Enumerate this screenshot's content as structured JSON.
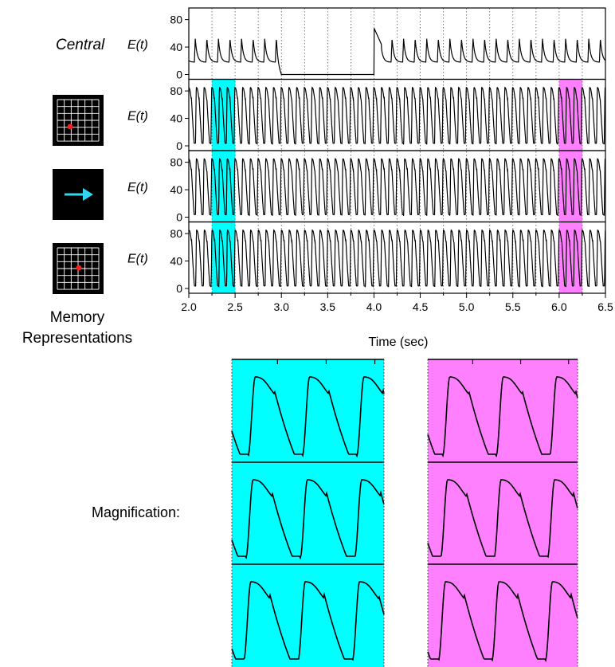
{
  "figure": {
    "central_label": "Central",
    "memory_label_line1": "Memory",
    "memory_label_line2": "Representations",
    "magnification_label": "Magnification:"
  },
  "colors": {
    "highlight_left": "#00ffff",
    "highlight_right": "#ff80ff",
    "trace": "#000000",
    "icon_background": "#000000",
    "icon_grid": "#ffffff",
    "icon_dot": "#ff2020",
    "icon_arrow": "#33d6f0"
  },
  "icons": [
    "grid-dot-icon",
    "arrow-right-icon",
    "grid-dot-icon"
  ],
  "chart_data": {
    "type": "line",
    "xlabel": "Time (sec)",
    "xlim": [
      2.0,
      6.5
    ],
    "x_ticks": [
      "2.0",
      "2.5",
      "3.0",
      "3.5",
      "4.0",
      "4.5",
      "5.0",
      "5.5",
      "6.0",
      "6.5"
    ],
    "grid_x_dotted": [
      2.25,
      2.5,
      2.75,
      3.0,
      3.25,
      3.5,
      3.75,
      4.0,
      4.25,
      4.5,
      4.75,
      5.0,
      5.25,
      5.5,
      5.75,
      6.0,
      6.25
    ],
    "highlight_windows": [
      [
        2.25,
        2.5
      ],
      [
        6.0,
        6.25
      ]
    ],
    "panels": [
      {
        "name": "Central",
        "ylabel": "E(t)",
        "ylim": [
          0,
          90
        ],
        "y_ticks": [
          0,
          40,
          80
        ],
        "pattern": "spikes every 0.125 s, silent from 3.0 to 4.0 s",
        "peak": 52,
        "baseline": 0,
        "silent_window": [
          3.0,
          4.0
        ]
      },
      {
        "name": "memory-1",
        "ylabel": "E(t)",
        "ylim": [
          0,
          90
        ],
        "y_ticks": [
          0,
          40,
          80
        ],
        "pattern": "oscillation period 0.083 s",
        "min": 2,
        "max": 85
      },
      {
        "name": "memory-2",
        "ylabel": "E(t)",
        "ylim": [
          0,
          90
        ],
        "y_ticks": [
          0,
          40,
          80
        ],
        "pattern": "oscillation period 0.083 s",
        "min": 2,
        "max": 85
      },
      {
        "name": "memory-3",
        "ylabel": "E(t)",
        "ylim": [
          0,
          90
        ],
        "y_ticks": [
          0,
          40,
          80
        ],
        "pattern": "oscillation period 0.083 s",
        "min": 2,
        "max": 85
      }
    ],
    "oscillation_period": 0.0833,
    "central_period": 0.125,
    "magnification_windows": [
      [
        2.25,
        2.5
      ],
      [
        6.0,
        6.25
      ]
    ]
  }
}
